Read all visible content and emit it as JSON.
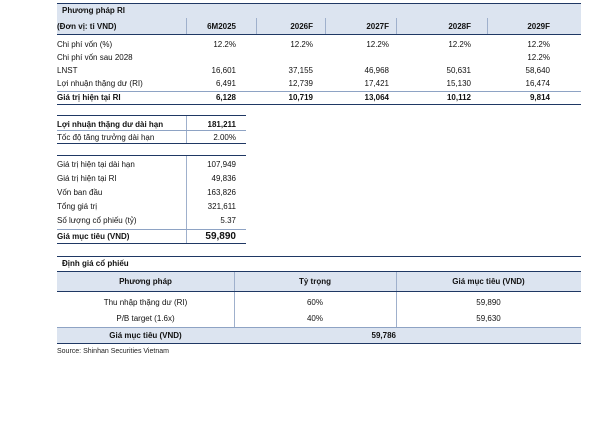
{
  "ri_table": {
    "title": "Phương pháp RI",
    "unit_label": "(Đơn vị: tỉ VND)",
    "columns": [
      "6M2025",
      "2026F",
      "2027F",
      "2028F",
      "2029F"
    ],
    "rows": [
      {
        "label": "Chi phí vốn (%)",
        "values": [
          "12.2%",
          "12.2%",
          "12.2%",
          "12.2%",
          "12.2%"
        ]
      },
      {
        "label": "Chi phí vốn sau 2028",
        "values": [
          "",
          "",
          "",
          "",
          "12.2%"
        ]
      },
      {
        "label": "LNST",
        "values": [
          "16,601",
          "37,155",
          "46,968",
          "50,631",
          "58,640"
        ]
      },
      {
        "label": "Lợi nhuận thặng dư (RI)",
        "values": [
          "6,491",
          "12,739",
          "17,421",
          "15,130",
          "16,474"
        ]
      },
      {
        "label": "Giá trị hiện tại RI",
        "values": [
          "6,128",
          "10,719",
          "13,064",
          "10,112",
          "9,814"
        ]
      }
    ]
  },
  "long_term": {
    "rows": [
      {
        "label": "Lợi nhuận thặng dư dài hạn",
        "value": "181,211"
      },
      {
        "label": "Tốc độ tăng trưởng dài hạn",
        "value": "2.00%"
      }
    ]
  },
  "summary": {
    "rows": [
      {
        "label": "Giá trị hiện tại dài hạn",
        "value": "107,949"
      },
      {
        "label": "Giá trị hiện tại RI",
        "value": "49,836"
      },
      {
        "label": "Vốn ban đầu",
        "value": "163,826"
      },
      {
        "label": "Tổng giá trị",
        "value": "321,611"
      },
      {
        "label": "Số lượng cổ phiếu (tỷ)",
        "value": "5.37"
      },
      {
        "label": "Giá mục tiêu (VND)",
        "value": "59,890"
      }
    ]
  },
  "valuation": {
    "title": "Định giá cổ phiếu",
    "headers": [
      "Phương pháp",
      "Tỷ trọng",
      "Giá mục tiêu (VND)"
    ],
    "rows": [
      {
        "method": "Thu nhập thặng dư (RI)",
        "weight": "60%",
        "price": "59,890"
      },
      {
        "method": "P/B target (1.6x)",
        "weight": "40%",
        "price": "59,630"
      }
    ],
    "total_label": "Giá mục tiêu (VND)",
    "total_value": "59,786"
  },
  "source": "Source: Shinhan Securities Vietnam"
}
